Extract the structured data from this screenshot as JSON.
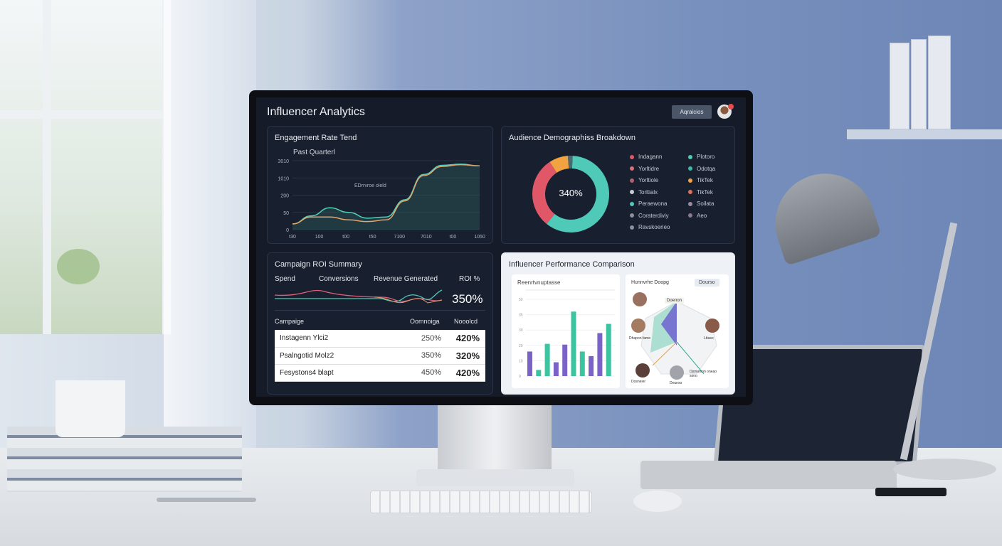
{
  "app": {
    "title": "Influencer Analytics",
    "header_button": "Aqraicios",
    "avatar": "user-avatar",
    "notification_color": "#e44d4d"
  },
  "engagement": {
    "title": "Engagement Rate Tend",
    "subtitle": "Past Quarterl",
    "annotation": "EDrrvroe oleld",
    "y_ticks": [
      "3010",
      "1010",
      "200",
      "50",
      "0"
    ],
    "x_ticks": [
      "t30",
      "100",
      "t00",
      "t50",
      "7100",
      "7010",
      "t00",
      "1050"
    ],
    "series": [
      {
        "color": "#4fd1b8",
        "values": [
          50,
          120,
          190,
          150,
          100,
          110,
          260,
          480,
          560,
          570,
          555
        ]
      },
      {
        "color": "#e6a36b",
        "values": [
          50,
          110,
          110,
          85,
          70,
          85,
          250,
          470,
          550,
          565,
          555
        ]
      }
    ]
  },
  "demographics": {
    "title": "Audience Demographiss Broakdown",
    "center_label": "340%",
    "slices": [
      {
        "color": "#4fc9b8",
        "value": 60
      },
      {
        "color": "#e05868",
        "value": 30
      },
      {
        "color": "#f0a340",
        "value": 8
      },
      {
        "color": "#4a6a70",
        "value": 2
      }
    ],
    "legend": [
      {
        "label": "Indagann",
        "color": "#e05868"
      },
      {
        "label": "Plotoro",
        "color": "#4fc9b8"
      },
      {
        "label": "Yorltidre",
        "color": "#d9707a"
      },
      {
        "label": "Odotqa",
        "color": "#3fb8a8"
      },
      {
        "label": "Yorltiole",
        "color": "#b06070"
      },
      {
        "label": "TikTek",
        "color": "#f0a340"
      },
      {
        "label": "Torltialx",
        "color": "#c9ccd1"
      },
      {
        "label": "TikTek",
        "color": "#e0705a"
      },
      {
        "label": "Peraewona",
        "color": "#4fc9b8"
      },
      {
        "label": "Soilata",
        "color": "#9a8aa0"
      },
      {
        "label": "Coraterdiviy",
        "color": "#8a909a"
      },
      {
        "label": "Aeo",
        "color": "#8a7a90"
      },
      {
        "label": "Ravskoerieo",
        "color": "#8a909a"
      }
    ]
  },
  "roi": {
    "title": "Campaign ROI Summary",
    "metrics": [
      "Spend",
      "Conversions",
      "Revenue Generated",
      "ROI %"
    ],
    "roi_value": "350%",
    "columns": [
      "Campaige",
      "Oomnoiga",
      "Nooolcd"
    ],
    "rows": [
      [
        "Instagenn Ylci2",
        "250%",
        "420%"
      ],
      [
        "Psalngotid Molz2",
        "350%",
        "320%"
      ],
      [
        "Fesystons4 blapt",
        "450%",
        "420%"
      ]
    ]
  },
  "performance": {
    "title": "Influencer Performance Comparison",
    "bar_chart": {
      "title": "Reenrtvnuptasse",
      "y_ticks": [
        "50",
        "35",
        "30",
        "20",
        "10",
        "0"
      ],
      "values": [
        16,
        4,
        21,
        9,
        20.5,
        42,
        16,
        13,
        28,
        34
      ],
      "colors": [
        "#7b62c9",
        "#3cc3a0",
        "#3cc3a0",
        "#7b62c9",
        "#7b62c9",
        "#3cc3a0",
        "#3cc3a0",
        "#7b62c9",
        "#7b62c9",
        "#3cc3a0"
      ]
    },
    "radar": {
      "title": "Hunnvrhe Doopg",
      "button": "Dourso",
      "badge": "Doenon",
      "labels": [
        "Dhapon fame",
        "Lttaso",
        "Dosneier",
        "Deunxo",
        "Djonamon oneao sono"
      ]
    }
  }
}
